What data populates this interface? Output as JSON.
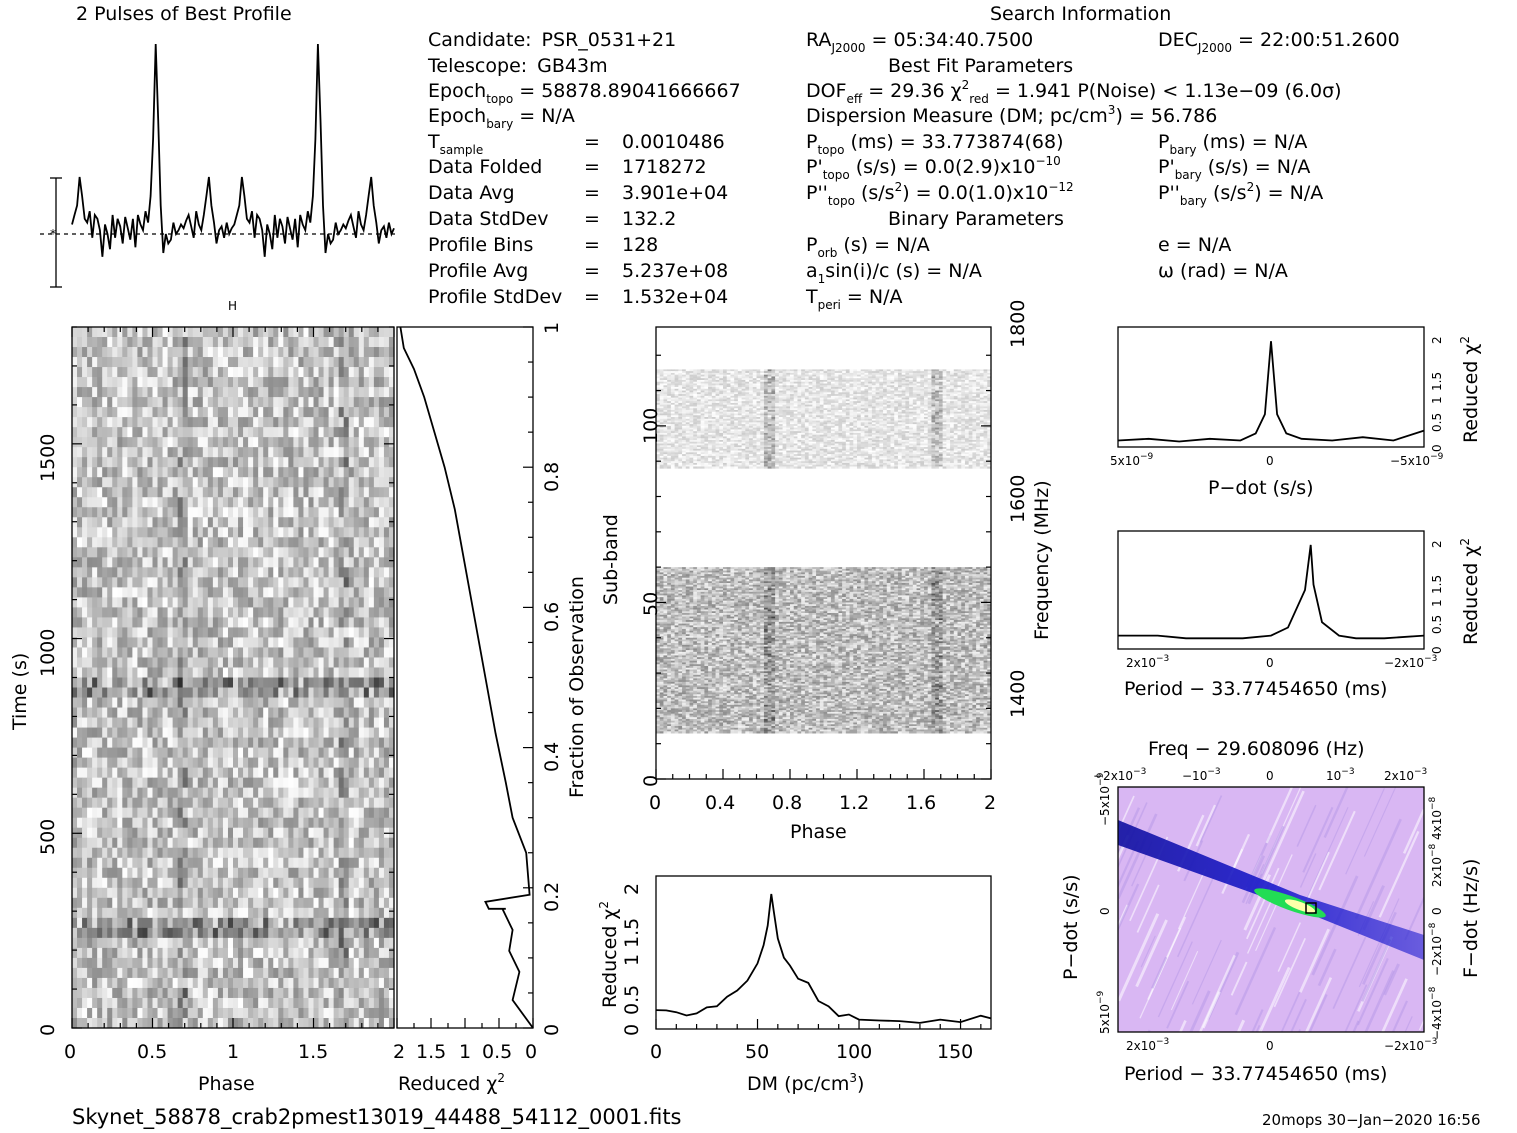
{
  "profile": {
    "title": "2 Pulses of Best Profile",
    "error_marker": "H"
  },
  "search_info": {
    "title": "Search Information",
    "candidate_label": "Candidate:",
    "candidate": "PSR_0531+21",
    "telescope_label": "Telescope:",
    "telescope": "GB43m",
    "epoch_topo": "58878.89041666667",
    "epoch_bary": "N/A",
    "tsample": "0.0010486",
    "data_folded_label": "Data Folded",
    "data_folded": "1718272",
    "data_avg_label": "Data Avg",
    "data_avg": "3.901e+04",
    "data_stddev_label": "Data StdDev",
    "data_stddev": "132.2",
    "profile_bins_label": "Profile Bins",
    "profile_bins": "128",
    "profile_avg_label": "Profile Avg",
    "profile_avg": "5.237e+08",
    "profile_stddev_label": "Profile StdDev",
    "profile_stddev": "1.532e+04",
    "ra": "05:34:40.7500",
    "dec": "22:00:51.2600",
    "best_fit_title": "Best Fit Parameters",
    "dof_eff": "29.36",
    "chi2_red": "1.941",
    "p_noise": "1.13e−09",
    "sigma": "(6.0σ)",
    "dm_label": "Dispersion Measure (DM; pc/cm",
    "dm": "56.786",
    "p_topo": "33.773874(68)",
    "p_bary": "N/A",
    "pdot_topo": "0.0(2.9)x10",
    "pdot_topo_exp": "−10",
    "pdot_bary": "N/A",
    "pddot_topo": "0.0(1.0)x10",
    "pddot_topo_exp": "−12",
    "pddot_bary": "N/A",
    "binary_title": "Binary Parameters",
    "p_orb": "N/A",
    "a1sini": "N/A",
    "t_peri": "N/A",
    "e": "N/A",
    "omega": "N/A"
  },
  "footer": {
    "filename": "Skynet_58878_crab2pmest13019_44488_54112_0001.fits",
    "stamp": "20mops 30−Jan−2020 16:56"
  },
  "colors": {
    "ppdot_background": "#d9b7f3",
    "ppdot_ridge": "#1a1acc",
    "ppdot_peak": "#22dd55"
  },
  "chart_data": [
    {
      "id": "profile",
      "type": "line",
      "title": "2 Pulses of Best Profile",
      "xlim": [
        0,
        2
      ],
      "y": [
        0.05,
        0.1,
        0.15,
        0.3,
        0.2,
        0.08,
        0.06,
        0.12,
        -0.02,
        0.1,
        0.08,
        0.02,
        -0.12,
        0.05,
        0.0,
        -0.08,
        0.1,
        -0.02,
        0.08,
        0.04,
        -0.05,
        0.09,
        0.03,
        -0.03,
        0.08,
        -0.07,
        0.1,
        0.05,
        0.02,
        0.12,
        0.06,
        0.2,
        0.5,
        1.0,
        0.6,
        0.15,
        -0.1,
        0.0,
        -0.05,
        -0.03,
        0.06,
        0.0,
        0.02,
        0.05,
        0.03,
        0.07,
        0.1,
        0.04,
        -0.02,
        0.12,
        0.05,
        0.02,
        0.1,
        0.2,
        0.3,
        0.15,
        0.06,
        -0.05,
        0.02,
        0.04,
        -0.02,
        0.06,
        0.0,
        0.03,
        0.05,
        0.1,
        0.15,
        0.3,
        0.2,
        0.08,
        0.06,
        0.12,
        -0.02,
        0.1,
        0.08,
        0.02,
        -0.12,
        0.05,
        0.0,
        -0.08,
        0.1,
        -0.02,
        0.08,
        0.04,
        -0.05,
        0.09,
        0.03,
        -0.03,
        0.08,
        -0.07,
        0.1,
        0.05,
        0.02,
        0.12,
        0.06,
        0.2,
        0.5,
        1.0,
        0.6,
        0.15,
        -0.1,
        0.0,
        -0.05,
        -0.03,
        0.06,
        0.0,
        0.02,
        0.05,
        0.03,
        0.07,
        0.1,
        0.04,
        -0.02,
        0.12,
        0.05,
        0.02,
        0.1,
        0.2,
        0.3,
        0.15,
        0.06,
        -0.05,
        0.02,
        0.04,
        -0.02,
        0.06,
        0.0,
        0.03
      ]
    },
    {
      "id": "time_phase",
      "type": "heatmap",
      "xlabel": "Phase",
      "ylabel": "Time (s)",
      "xlim": [
        0,
        2
      ],
      "ylim": [
        0,
        1800
      ],
      "x_ticks": [
        "0",
        "0.5",
        "1",
        "1.5"
      ],
      "y_ticks": [
        "0",
        "500",
        "1000",
        "1500"
      ],
      "pulse_phases": [
        0.68,
        1.68
      ]
    },
    {
      "id": "chi2_vs_fraction",
      "type": "line",
      "xlabel": "Reduced χ",
      "ylabel": "Fraction of Observation",
      "xlim": [
        2,
        0
      ],
      "ylim": [
        0,
        1
      ],
      "x_ticks": [
        "2",
        "1.5",
        "1",
        "0.5",
        "0"
      ],
      "y_ticks": [
        "0",
        "0.2",
        "0.4",
        "0.6",
        "0.8",
        "1"
      ],
      "x": [
        0.0,
        0.3,
        0.2,
        0.35,
        0.3,
        0.45,
        0.4,
        0.55,
        0.65,
        0.7,
        0.05,
        0.1,
        0.3,
        0.4,
        0.55,
        0.7,
        0.85,
        1.0,
        1.15,
        1.3,
        1.45,
        1.6,
        1.75,
        1.9,
        1.95
      ],
      "y": [
        0.0,
        0.04,
        0.08,
        0.11,
        0.14,
        0.17,
        0.17,
        0.17,
        0.17,
        0.18,
        0.19,
        0.25,
        0.3,
        0.35,
        0.42,
        0.5,
        0.58,
        0.66,
        0.74,
        0.8,
        0.85,
        0.9,
        0.94,
        0.97,
        1.0
      ]
    },
    {
      "id": "subband_phase",
      "type": "heatmap",
      "xlabel": "Phase",
      "ylabel": "Sub-band",
      "y2label": "Frequency (MHz)",
      "xlim": [
        0,
        2
      ],
      "ylim": [
        0,
        128
      ],
      "x_ticks": [
        "0",
        "0.4",
        "0.8",
        "1.2",
        "1.6",
        "2"
      ],
      "y_ticks": [
        "0",
        "50",
        "100"
      ],
      "y2_ticks": [
        "1400",
        "1600",
        "1800"
      ],
      "bands": [
        [
          13,
          60
        ],
        [
          88,
          116
        ]
      ],
      "pulse_phases": [
        0.68,
        1.68
      ]
    },
    {
      "id": "dm_curve",
      "type": "line",
      "xlabel": "DM (pc/cm",
      "ylabel": "Reduced χ",
      "xlim": [
        0,
        165
      ],
      "ylim": [
        0,
        2.2
      ],
      "x_ticks": [
        "0",
        "50",
        "100",
        "150"
      ],
      "y_ticks": [
        "0",
        "0.5",
        "1",
        "1.5",
        "2"
      ],
      "x": [
        0,
        5,
        10,
        15,
        20,
        25,
        30,
        35,
        40,
        45,
        50,
        53,
        55,
        56.8,
        58,
        60,
        63,
        66,
        70,
        75,
        80,
        85,
        90,
        95,
        100,
        110,
        120,
        130,
        140,
        150,
        160,
        165
      ],
      "y": [
        0.3,
        0.25,
        0.22,
        0.2,
        0.25,
        0.3,
        0.35,
        0.45,
        0.55,
        0.7,
        0.95,
        1.2,
        1.5,
        1.94,
        1.7,
        1.3,
        1.05,
        0.9,
        0.75,
        0.65,
        0.4,
        0.3,
        0.2,
        0.18,
        0.15,
        0.12,
        0.12,
        0.1,
        0.15,
        0.12,
        0.2,
        0.15
      ]
    },
    {
      "id": "pdot_curve",
      "type": "line",
      "xlabel": "P−dot (s/s)",
      "ylabel": "Reduced χ",
      "xlim": [
        5e-09,
        -5e-09
      ],
      "ylim": [
        0,
        2.2
      ],
      "y_ticks": [
        "0",
        "0.5",
        "1",
        "1.5",
        "2"
      ],
      "x": [
        5e-09,
        4e-09,
        3e-09,
        2e-09,
        1e-09,
        5e-10,
        2e-10,
        0,
        -2e-10,
        -5e-10,
        -1e-09,
        -2e-09,
        -3e-09,
        -4e-09,
        -5e-09
      ],
      "y": [
        0.12,
        0.15,
        0.1,
        0.15,
        0.12,
        0.25,
        0.6,
        1.94,
        0.6,
        0.25,
        0.15,
        0.12,
        0.18,
        0.12,
        0.3
      ]
    },
    {
      "id": "period_curve",
      "type": "line",
      "xlabel": "Period − 33.77454650 (ms)",
      "ylabel": "Reduced χ",
      "xlim": [
        0.0027,
        -0.0027
      ],
      "ylim": [
        0,
        2.2
      ],
      "y_ticks": [
        "0",
        "0.5",
        "1",
        "1.5",
        "2"
      ],
      "x": [
        0.0027,
        0.002,
        0.0015,
        0.001,
        0.0005,
        0.0,
        -0.0003,
        -0.0006,
        -0.0007,
        -0.00075,
        -0.0009,
        -0.0012,
        -0.0015,
        -0.002,
        -0.0027
      ],
      "y": [
        0.25,
        0.25,
        0.2,
        0.2,
        0.2,
        0.25,
        0.4,
        1.1,
        1.94,
        1.2,
        0.5,
        0.25,
        0.2,
        0.2,
        0.25
      ]
    },
    {
      "id": "p_pdot_plane",
      "type": "heatmap",
      "title": "Freq − 29.608096 (Hz)",
      "xlabel": "Period − 33.77454650 (ms)",
      "ylabel": "P−dot (s/s)",
      "y2label": "F−dot (Hz/s)",
      "xlim": [
        0.0027,
        -0.0027
      ],
      "ylim": [
        5e-09,
        -5e-09
      ],
      "best": [
        -0.0007,
        0
      ]
    }
  ]
}
